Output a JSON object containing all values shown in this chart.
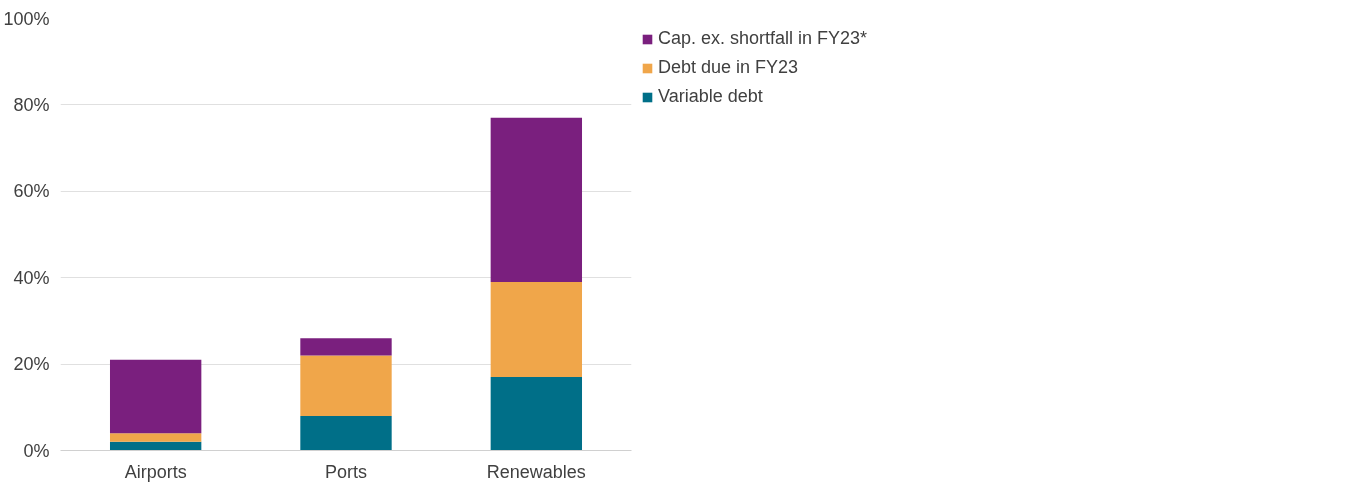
{
  "chart_data": {
    "type": "bar",
    "stacked": true,
    "categories": [
      "Airports",
      "Ports",
      "Renewables"
    ],
    "series": [
      {
        "name": "Variable debt",
        "color": "#006f88",
        "values": [
          2,
          8,
          17
        ]
      },
      {
        "name": "Debt due in FY23",
        "color": "#f0a64a",
        "values": [
          2,
          14,
          22
        ]
      },
      {
        "name": "Cap. ex. shortfall in FY23*",
        "color": "#7a1f7e",
        "values": [
          17,
          4,
          38
        ]
      }
    ],
    "ylim": [
      0,
      100
    ],
    "yticks": [
      {
        "value": 0,
        "label": "0%"
      },
      {
        "value": 20,
        "label": "20%"
      },
      {
        "value": 40,
        "label": "40%"
      },
      {
        "value": 60,
        "label": "60%"
      },
      {
        "value": 80,
        "label": "80%"
      },
      {
        "value": 100,
        "label": "100%"
      }
    ],
    "grid": "y",
    "legend": "top right"
  }
}
